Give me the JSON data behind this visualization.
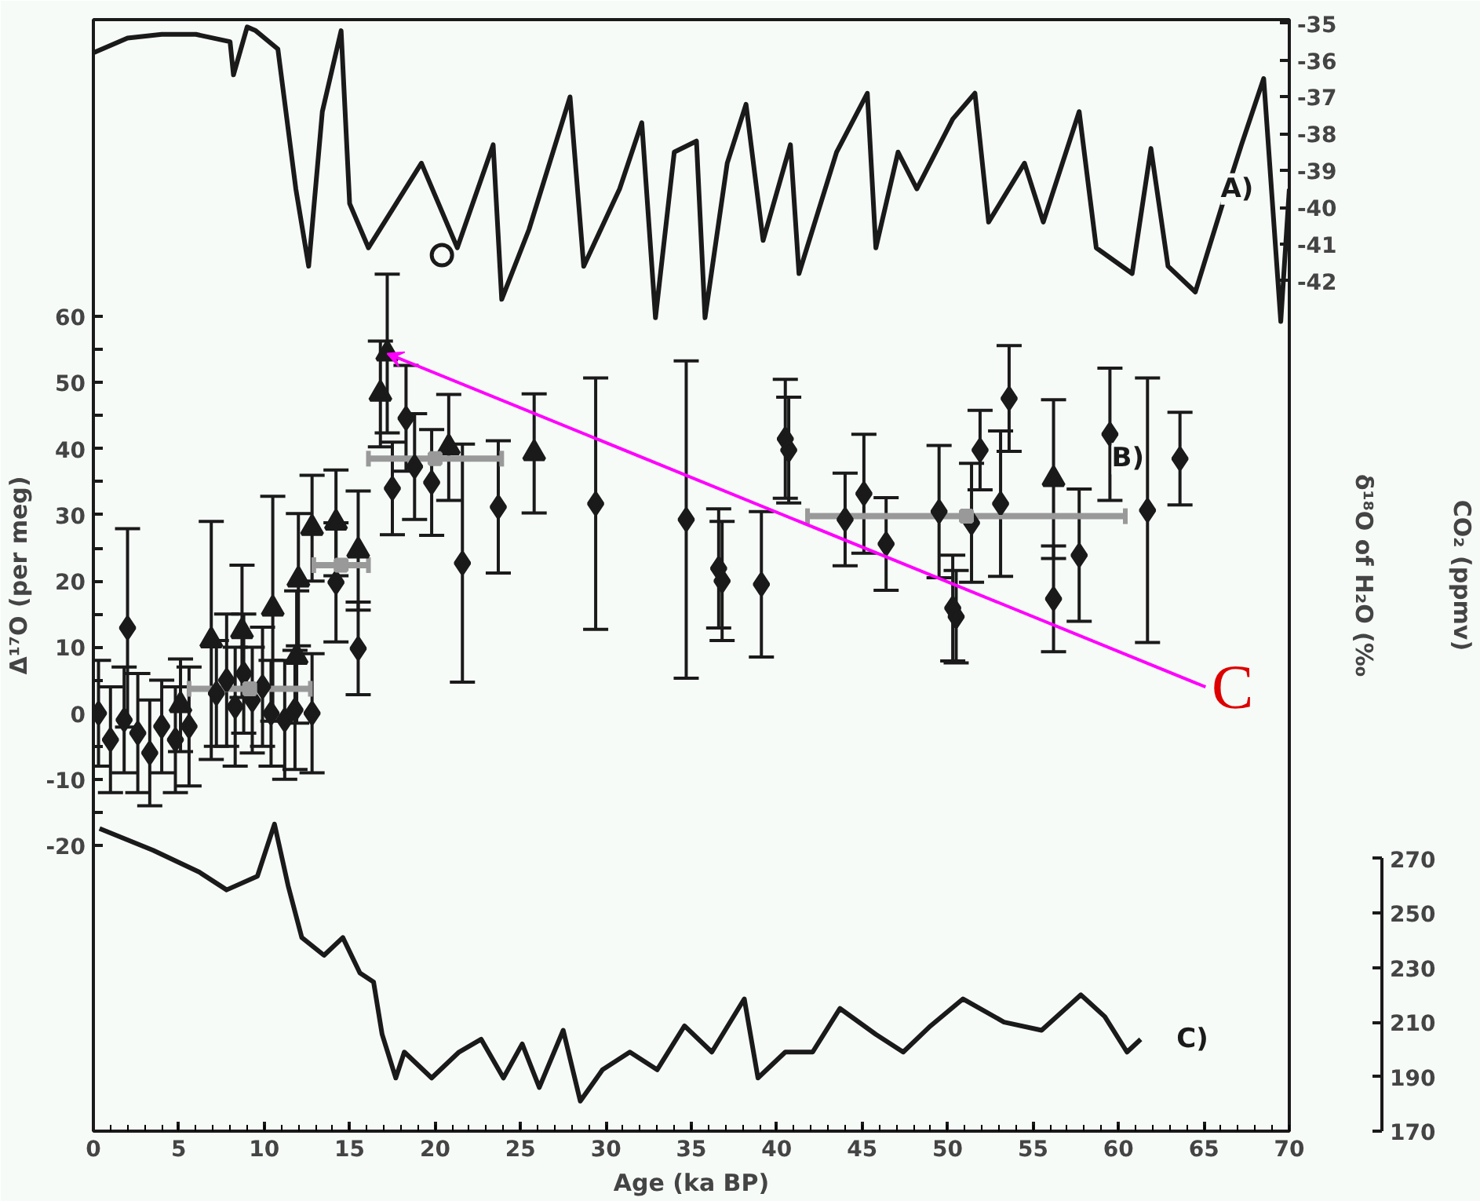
{
  "chart_data": {
    "type": "scatter",
    "xlabel": "Age (ka BP)",
    "ylabel": "Δ¹⁷O (per meg)",
    "y2label": "δ¹⁸O of H₂O (‰",
    "y3label": "CO₂ (ppmv)",
    "xlim": [
      0,
      70
    ],
    "xticks": [
      0,
      5,
      10,
      15,
      20,
      25,
      30,
      35,
      40,
      45,
      50,
      55,
      60,
      65,
      70
    ],
    "ylim": [
      -63.2,
      104.9
    ],
    "yticks": [
      -20,
      {
        "value": -15,
        "label": null
      },
      -10,
      {
        "value": -5,
        "label": null
      },
      0,
      {
        "value": 5,
        "label": null
      },
      10,
      {
        "value": 15,
        "label": null
      },
      20,
      {
        "value": 25,
        "label": null
      },
      30,
      {
        "value": 35,
        "label": null
      },
      40,
      {
        "value": 45,
        "label": null
      },
      50,
      {
        "value": 55,
        "label": null
      },
      60
    ],
    "y2lim": [
      -65.1,
      -34.9
    ],
    "y2ticks": [
      -35,
      -36,
      -37,
      -38,
      -39,
      -40,
      -41,
      -42
    ],
    "y3lim": [
      170,
      577.7
    ],
    "y3ticks": [
      170,
      190,
      210,
      230,
      250,
      270
    ],
    "grid": false,
    "legend": false,
    "annotations": [
      {
        "text": "C",
        "x": 17.2,
        "y": 54.4
      }
    ],
    "series": [
      {
        "type": "line",
        "axis": "y2",
        "name": "A)",
        "color": "#1a1a1a",
        "x": [
          0,
          2,
          4,
          6,
          8,
          8.2,
          9,
          9.5,
          10.8,
          11.85,
          12.6,
          13.4,
          14.5,
          15,
          16.1,
          19.2,
          21.3,
          23.4,
          23.9,
          25.5,
          27.9,
          28.7,
          30.8,
          32.1,
          32.9,
          34,
          35.3,
          35.8,
          37.1,
          38.2,
          39.2,
          40.8,
          41.3,
          43.5,
          45.3,
          45.8,
          47.1,
          48.2,
          50.3,
          51.6,
          52.4,
          54.5,
          55.6,
          57.7,
          58.7,
          60.8,
          61.9,
          62.9,
          64.5,
          66.1,
          67.2,
          68.5,
          69.5,
          70
        ],
        "values": [
          -35.8,
          -35.4,
          -35.3,
          -35.3,
          -35.5,
          -36.4,
          -35.1,
          -35.2,
          -35.7,
          -39.5,
          -41.6,
          -37.4,
          -35.2,
          -39.9,
          -41.1,
          -38.8,
          -41.1,
          -38.3,
          -42.5,
          -40.6,
          -37.0,
          -41.6,
          -39.5,
          -37.7,
          -43.0,
          -38.5,
          -38.2,
          -43.0,
          -38.8,
          -37.2,
          -40.9,
          -38.3,
          -41.8,
          -38.5,
          -36.9,
          -41.1,
          -38.5,
          -39.5,
          -37.6,
          -36.9,
          -40.4,
          -38.8,
          -40.4,
          -37.4,
          -41.1,
          -41.8,
          -38.4,
          -41.6,
          -42.3,
          -39.9,
          -38.3,
          -36.5,
          -43.1,
          -39.5
        ]
      },
      {
        "axis": "y2",
        "marker": "circle",
        "color": "#1a1a1a",
        "x": [
          20.4
        ],
        "values": [
          -41.3
        ]
      },
      {
        "marker": "diamond",
        "name": "B)",
        "color": "#1a1a1a",
        "x": [
          0.3,
          1.0,
          1.8,
          2.0,
          2.6,
          3.3,
          4.0,
          4.8,
          5.6,
          7.2,
          7.8,
          8.3,
          8.8,
          9.3,
          9.9,
          10.4,
          11.2,
          11.8,
          12.8,
          14.2,
          15.5,
          17.5,
          18.3,
          18.8,
          19.8,
          21.6,
          23.7,
          29.4,
          34.7,
          36.6,
          36.8,
          39.1,
          40.5,
          40.7,
          44.0,
          45.1,
          46.4,
          49.5,
          50.3,
          50.5,
          51.4,
          51.9,
          53.1,
          53.6,
          56.2,
          57.7,
          59.5,
          61.7,
          63.6
        ],
        "values": [
          0,
          -4,
          -1,
          12.9,
          -3,
          -6,
          -2,
          -4,
          -2,
          3,
          5,
          1,
          6,
          2,
          4,
          0,
          -1,
          0.5,
          0,
          19.8,
          9.8,
          34,
          44.6,
          37.3,
          34.9,
          22.7,
          31.2,
          31.7,
          29.3,
          21.9,
          20,
          19.5,
          41.5,
          39.8,
          29.3,
          33.2,
          25.6,
          30.5,
          15.9,
          14.6,
          28.8,
          39.8,
          31.7,
          47.6,
          17.3,
          23.9,
          42.2,
          30.7,
          38.5
        ],
        "errors": [
          8,
          8,
          8,
          15,
          9,
          8,
          7,
          8,
          9,
          8,
          10,
          9,
          9,
          8,
          9,
          8,
          9,
          9,
          9,
          9,
          7,
          7,
          8,
          8,
          8,
          18,
          10,
          19,
          24,
          9,
          9,
          11,
          9,
          8,
          7,
          9,
          7,
          10,
          8,
          7,
          9,
          6,
          11,
          8,
          8,
          10,
          10,
          20,
          7
        ]
      },
      {
        "marker": "triangle",
        "color": "#1a1a1a",
        "x": [
          5.1,
          6.9,
          8.7,
          10.5,
          11.9,
          12.0,
          12.8,
          14.2,
          15.5,
          16.8,
          17.2,
          20.8,
          25.8,
          56.2
        ],
        "values": [
          1.2,
          11,
          12.4,
          15.8,
          8.5,
          20.2,
          28,
          28.8,
          24.6,
          48.3,
          54.4,
          40.2,
          39.3,
          35.4
        ],
        "errors": [
          7,
          18,
          10,
          17,
          10,
          10,
          8,
          8,
          9,
          8,
          12,
          8,
          9,
          12
        ]
      },
      {
        "marker": "square",
        "color": "#999999",
        "x": [
          9.15,
          14.5,
          20,
          51.1
        ],
        "values": [
          3.7,
          22.4,
          38.5,
          29.8
        ],
        "xerrors": [
          [
            5.6,
            12.7
          ],
          [
            12.9,
            16.1
          ],
          [
            16.1,
            23.9
          ],
          [
            41.8,
            60.4
          ]
        ]
      },
      {
        "type": "line",
        "axis": "y3",
        "name": "C)",
        "color": "#1a1a1a",
        "x": [
          0.36,
          3.5,
          6.2,
          7.8,
          9.6,
          10.6,
          11.4,
          12.2,
          13.5,
          14.6,
          15.6,
          16.4,
          16.9,
          17.7,
          18.2,
          19.8,
          21.4,
          22.7,
          24.0,
          25.1,
          26.1,
          27.5,
          28.5,
          29.8,
          31.4,
          33.0,
          34.6,
          36.2,
          38.1,
          38.9,
          40.5,
          42.1,
          43.7,
          45.8,
          47.4,
          49.0,
          50.9,
          53.3,
          55.5,
          57.8,
          59.2,
          60.5,
          61.3
        ],
        "values": [
          281,
          273,
          265,
          258.5,
          263.5,
          282.6,
          260,
          241,
          234.5,
          241,
          228,
          224.7,
          205.5,
          189.5,
          199,
          189.5,
          199,
          203.7,
          189.5,
          202,
          186,
          207,
          181,
          192.5,
          199,
          192.5,
          208.6,
          199,
          218.5,
          189.5,
          199,
          199,
          215,
          205.5,
          199,
          208.6,
          218.5,
          210,
          207,
          220,
          212,
          199,
          203.7
        ]
      }
    ]
  }
}
